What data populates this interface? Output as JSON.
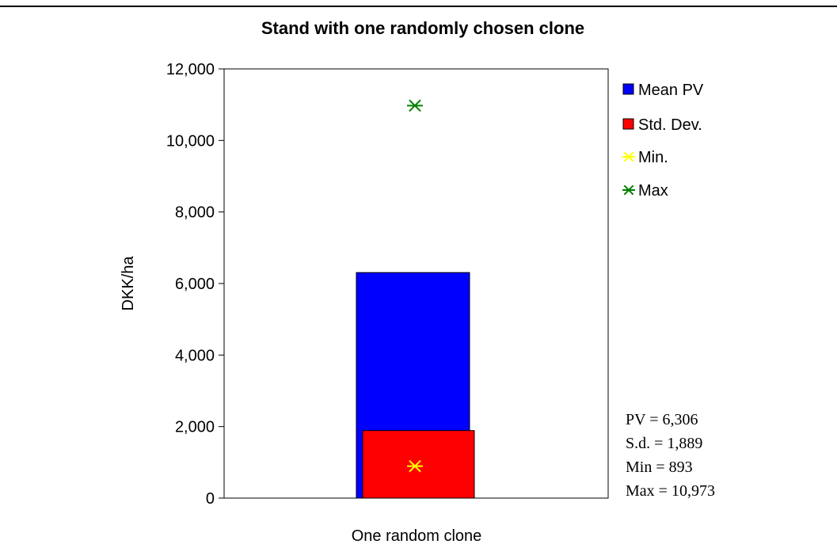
{
  "chart_data": {
    "type": "bar",
    "title": "Stand with one randomly chosen clone",
    "xlabel": "One random clone",
    "ylabel": "DKK/ha",
    "ylim": [
      0,
      12000
    ],
    "yticks": [
      0,
      2000,
      4000,
      6000,
      8000,
      10000,
      12000
    ],
    "ytick_labels": [
      "0",
      "2,000",
      "4,000",
      "6,000",
      "8,000",
      "10,000",
      "12,000"
    ],
    "categories": [
      "One random clone"
    ],
    "series": [
      {
        "name": "Mean PV",
        "type": "bar",
        "color": "#0000ff",
        "values": [
          6306
        ]
      },
      {
        "name": "Std. Dev.",
        "type": "bar",
        "color": "#ff0000",
        "values": [
          1889
        ]
      },
      {
        "name": "Min.",
        "type": "marker",
        "marker": "asterisk",
        "color": "#ffff00",
        "values": [
          893
        ]
      },
      {
        "name": "Max",
        "type": "marker",
        "marker": "asterisk",
        "color": "#008000",
        "values": [
          10973
        ]
      }
    ],
    "legend_position": "right",
    "annotations": [
      "PV = 6,306",
      "S.d. = 1,889",
      "Min = 893",
      "Max = 10,973"
    ]
  }
}
